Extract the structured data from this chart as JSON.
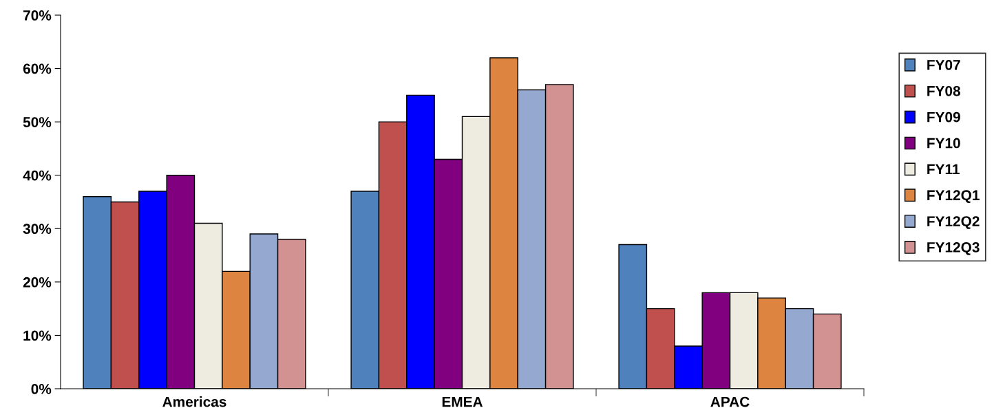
{
  "chart_data": {
    "type": "bar",
    "categories": [
      "Americas",
      "EMEA",
      "APAC"
    ],
    "series": [
      {
        "name": "FY07",
        "color": "#4f81bd",
        "values": [
          36,
          37,
          27
        ]
      },
      {
        "name": "FY08",
        "color": "#c0504d",
        "values": [
          35,
          50,
          15
        ]
      },
      {
        "name": "FY09",
        "color": "#0000ff",
        "values": [
          37,
          55,
          8
        ]
      },
      {
        "name": "FY10",
        "color": "#800080",
        "values": [
          40,
          43,
          18
        ]
      },
      {
        "name": "FY11",
        "color": "#eeece1",
        "values": [
          31,
          51,
          18
        ]
      },
      {
        "name": "FY12Q1",
        "color": "#dd8540",
        "values": [
          22,
          62,
          17
        ]
      },
      {
        "name": "FY12Q2",
        "color": "#95a9d0",
        "values": [
          29,
          56,
          15
        ]
      },
      {
        "name": "FY12Q3",
        "color": "#d39292",
        "values": [
          28,
          57,
          14
        ]
      }
    ],
    "ylim": [
      0,
      70
    ],
    "yticks": [
      {
        "value": 0,
        "label": "0%"
      },
      {
        "value": 10,
        "label": "10%"
      },
      {
        "value": 20,
        "label": "20%"
      },
      {
        "value": 30,
        "label": "30%"
      },
      {
        "value": 40,
        "label": "40%"
      },
      {
        "value": 50,
        "label": "50%"
      },
      {
        "value": 60,
        "label": "60%"
      },
      {
        "value": 70,
        "label": "70%"
      }
    ],
    "grid": false,
    "legend": "right"
  }
}
